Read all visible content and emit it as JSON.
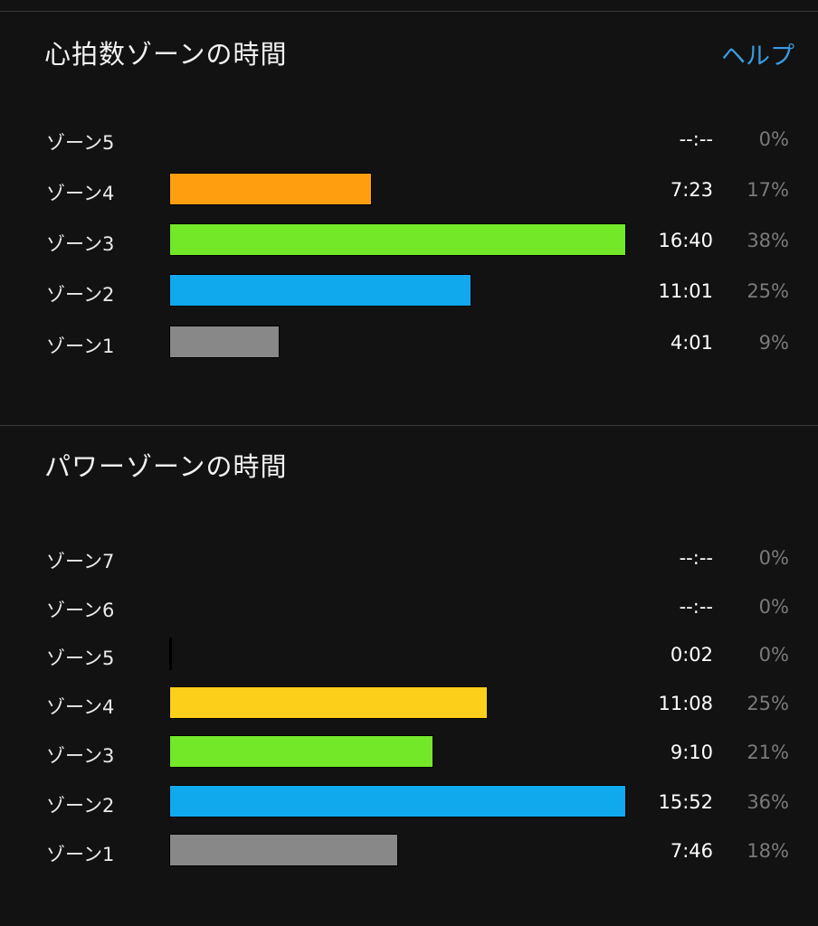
{
  "heart_rate": {
    "title": "心拍数ゾーンの時間",
    "help_label": "ヘルプ",
    "zones": [
      {
        "label": "ゾーン5",
        "time": "--:--",
        "percent": "0%",
        "fraction": 0,
        "color": "#ffffff"
      },
      {
        "label": "ゾーン4",
        "time": "7:23",
        "percent": "17%",
        "fraction": 0.443,
        "color": "#ff9f0f"
      },
      {
        "label": "ゾーン3",
        "time": "16:40",
        "percent": "38%",
        "fraction": 1.0,
        "color": "#73e829"
      },
      {
        "label": "ゾーン2",
        "time": "11:01",
        "percent": "25%",
        "fraction": 0.661,
        "color": "#11a9ee"
      },
      {
        "label": "ゾーン1",
        "time": "4:01",
        "percent": "9%",
        "fraction": 0.241,
        "color": "#888888"
      }
    ]
  },
  "power": {
    "title": "パワーゾーンの時間",
    "zones": [
      {
        "label": "ゾーン7",
        "time": "--:--",
        "percent": "0%",
        "fraction": 0,
        "color": "#ffffff"
      },
      {
        "label": "ゾーン6",
        "time": "--:--",
        "percent": "0%",
        "fraction": 0,
        "color": "#ffffff"
      },
      {
        "label": "ゾーン5",
        "time": "0:02",
        "percent": "0%",
        "fraction": 0.004,
        "color": "#ff3a1a"
      },
      {
        "label": "ゾーン4",
        "time": "11:08",
        "percent": "25%",
        "fraction": 0.698,
        "color": "#fcd01a"
      },
      {
        "label": "ゾーン3",
        "time": "9:10",
        "percent": "21%",
        "fraction": 0.578,
        "color": "#73e829"
      },
      {
        "label": "ゾーン2",
        "time": "15:52",
        "percent": "36%",
        "fraction": 1.0,
        "color": "#11a9ee"
      },
      {
        "label": "ゾーン1",
        "time": "7:46",
        "percent": "18%",
        "fraction": 0.5,
        "color": "#888888"
      }
    ]
  }
}
